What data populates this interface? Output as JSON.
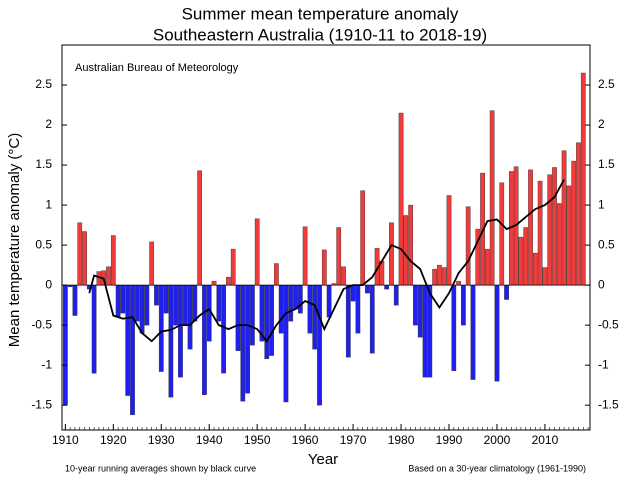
{
  "chart_data": {
    "type": "bar",
    "title": "Summer mean temperature anomaly",
    "subtitle": "Southeastern Australia (1910-11 to 2018-19)",
    "xlabel": "Year",
    "ylabel": "Mean temperature anomaly (°C)",
    "annotation": "Australian Bureau of Meteorology",
    "note_left": "10-year running averages shown by black curve",
    "note_right": "Based on a 30-year climatology (1961-1990)",
    "xlim": [
      1909.3,
      2019.4
    ],
    "xticks": [
      1910,
      1920,
      1930,
      1940,
      1950,
      1960,
      1970,
      1980,
      1990,
      2000,
      2010
    ],
    "ylim": [
      -1.81,
      3.0
    ],
    "yticks": [
      -1.5,
      -1,
      -0.5,
      0,
      0.5,
      1,
      1.5,
      2,
      2.5
    ],
    "positive_color": "#ee3b3b",
    "negative_color": "#2020ee",
    "x": [
      1910,
      1911,
      1912,
      1913,
      1914,
      1915,
      1916,
      1917,
      1918,
      1919,
      1920,
      1921,
      1922,
      1923,
      1924,
      1925,
      1926,
      1927,
      1928,
      1929,
      1930,
      1931,
      1932,
      1933,
      1934,
      1935,
      1936,
      1937,
      1938,
      1939,
      1940,
      1941,
      1942,
      1943,
      1944,
      1945,
      1946,
      1947,
      1948,
      1949,
      1950,
      1951,
      1952,
      1953,
      1954,
      1955,
      1956,
      1957,
      1958,
      1959,
      1960,
      1961,
      1962,
      1963,
      1964,
      1965,
      1966,
      1967,
      1968,
      1969,
      1970,
      1971,
      1972,
      1973,
      1974,
      1975,
      1976,
      1977,
      1978,
      1979,
      1980,
      1981,
      1982,
      1983,
      1984,
      1985,
      1986,
      1987,
      1988,
      1989,
      1990,
      1991,
      1992,
      1993,
      1994,
      1995,
      1996,
      1997,
      1998,
      1999,
      2000,
      2001,
      2002,
      2003,
      2004,
      2005,
      2006,
      2007,
      2008,
      2009,
      2010,
      2011,
      2012,
      2013,
      2014,
      2015,
      2016,
      2017,
      2018
    ],
    "values": [
      -1.5,
      -0.02,
      -0.38,
      0.78,
      0.67,
      -0.05,
      -1.1,
      0.17,
      0.18,
      0.23,
      0.62,
      -0.4,
      -0.35,
      -1.38,
      -1.62,
      -0.45,
      -0.6,
      -0.5,
      0.54,
      -0.25,
      -1.08,
      -0.35,
      -1.4,
      -0.5,
      -1.15,
      -0.5,
      -0.8,
      -0.45,
      1.43,
      -1.37,
      -0.7,
      0.05,
      -0.45,
      -1.1,
      0.1,
      0.45,
      -0.82,
      -1.45,
      -1.35,
      -0.75,
      0.83,
      -0.7,
      -0.92,
      -0.88,
      0.27,
      -0.6,
      -1.46,
      -0.45,
      -0.3,
      -0.35,
      0.73,
      -0.6,
      -0.8,
      -1.5,
      0.44,
      -0.4,
      0.02,
      0.72,
      0.23,
      -0.9,
      -0.2,
      -0.6,
      1.18,
      -0.1,
      -0.85,
      0.46,
      0.3,
      -0.05,
      0.78,
      -0.25,
      2.15,
      0.87,
      1.0,
      -0.5,
      -0.65,
      -1.15,
      -1.15,
      0.2,
      0.25,
      0.22,
      1.12,
      -1.07,
      0.05,
      -0.5,
      0.98,
      -1.18,
      0.7,
      1.4,
      0.45,
      2.18,
      -1.2,
      1.28,
      -0.18,
      1.42,
      1.48,
      0.6,
      0.72,
      1.44,
      0.4,
      1.3,
      0.22,
      1.38,
      1.47,
      1.02,
      1.68,
      1.24,
      1.55,
      1.78,
      2.65
    ],
    "running": {
      "color": "#000000",
      "x": [
        1915,
        1916,
        1918,
        1920,
        1922,
        1924,
        1926,
        1928,
        1930,
        1932,
        1934,
        1936,
        1938,
        1940,
        1942,
        1944,
        1946,
        1948,
        1950,
        1952,
        1954,
        1956,
        1958,
        1960,
        1962,
        1964,
        1966,
        1968,
        1970,
        1972,
        1974,
        1976,
        1978,
        1980,
        1982,
        1984,
        1986,
        1988,
        1990,
        1992,
        1994,
        1996,
        1998,
        2000,
        2002,
        2004,
        2006,
        2008,
        2010,
        2012,
        2014
      ],
      "values": [
        -0.1,
        0.12,
        0.08,
        -0.38,
        -0.42,
        -0.4,
        -0.6,
        -0.7,
        -0.58,
        -0.56,
        -0.5,
        -0.5,
        -0.38,
        -0.3,
        -0.5,
        -0.55,
        -0.5,
        -0.5,
        -0.55,
        -0.7,
        -0.5,
        -0.35,
        -0.3,
        -0.2,
        -0.25,
        -0.55,
        -0.3,
        -0.05,
        0.0,
        0.0,
        0.1,
        0.3,
        0.5,
        0.45,
        0.3,
        0.2,
        -0.1,
        -0.28,
        -0.1,
        0.15,
        0.3,
        0.55,
        0.8,
        0.82,
        0.7,
        0.75,
        0.85,
        0.95,
        1.0,
        1.1,
        1.32
      ]
    }
  }
}
